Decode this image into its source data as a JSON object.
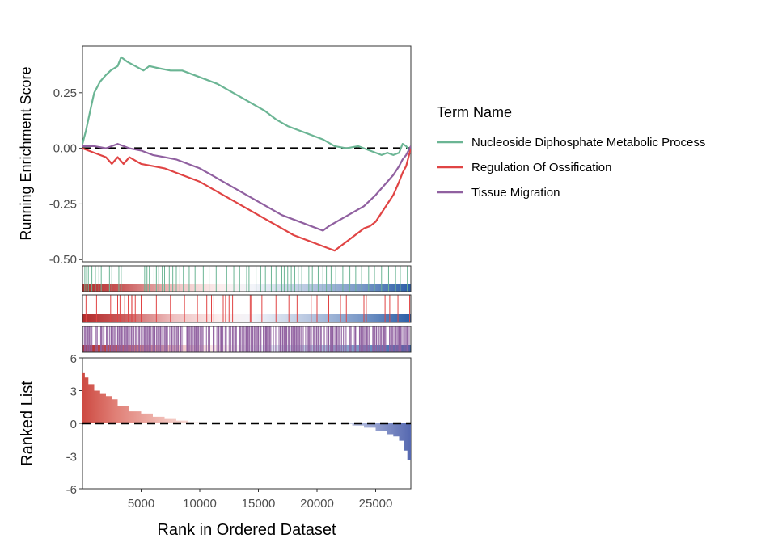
{
  "chart_data": {
    "type": "line",
    "top_panel": {
      "ylabel": "Running Enrichment Score",
      "ylim": [
        -0.51,
        0.46
      ],
      "yticks": [
        0.25,
        0.0,
        -0.25,
        -0.5
      ],
      "ytick_labels": [
        "0.25",
        "0.00",
        "-0.25",
        "-0.50"
      ],
      "hline": 0,
      "series": [
        {
          "name": "Nucleoside Diphosphate Metabolic Process",
          "color": "#6bb594",
          "x": [
            0,
            300,
            700,
            1000,
            1500,
            2000,
            2400,
            3000,
            3300,
            3800,
            4500,
            5200,
            5700,
            6500,
            7500,
            8500,
            9500,
            10500,
            11500,
            12500,
            13500,
            14500,
            15500,
            16500,
            17500,
            18500,
            19500,
            20500,
            21500,
            22500,
            23500,
            24500,
            25500,
            26000,
            26500,
            27000,
            27300,
            27600,
            28000
          ],
          "values": [
            0.02,
            0.08,
            0.18,
            0.25,
            0.3,
            0.33,
            0.35,
            0.37,
            0.41,
            0.39,
            0.37,
            0.35,
            0.37,
            0.36,
            0.35,
            0.35,
            0.33,
            0.31,
            0.29,
            0.26,
            0.23,
            0.2,
            0.17,
            0.13,
            0.1,
            0.08,
            0.06,
            0.04,
            0.01,
            0.0,
            0.01,
            -0.01,
            -0.03,
            -0.02,
            -0.03,
            -0.02,
            0.02,
            0.01,
            -0.02
          ]
        },
        {
          "name": "Regulation Of Ossification",
          "color": "#e04444",
          "x": [
            0,
            500,
            1000,
            1500,
            2000,
            2500,
            3000,
            3500,
            4000,
            5000,
            6000,
            7000,
            8000,
            9000,
            10000,
            11000,
            12000,
            13000,
            14000,
            15000,
            16000,
            17000,
            18000,
            19000,
            20000,
            21000,
            21500,
            22000,
            22500,
            23000,
            23500,
            24000,
            24500,
            25000,
            25500,
            26000,
            26500,
            27000,
            27300,
            27600,
            28000
          ],
          "values": [
            0.0,
            -0.01,
            -0.02,
            -0.03,
            -0.04,
            -0.07,
            -0.04,
            -0.07,
            -0.04,
            -0.07,
            -0.08,
            -0.09,
            -0.11,
            -0.13,
            -0.15,
            -0.18,
            -0.21,
            -0.24,
            -0.27,
            -0.3,
            -0.33,
            -0.36,
            -0.39,
            -0.41,
            -0.43,
            -0.45,
            -0.46,
            -0.44,
            -0.42,
            -0.4,
            -0.38,
            -0.36,
            -0.35,
            -0.33,
            -0.29,
            -0.25,
            -0.21,
            -0.15,
            -0.11,
            -0.08,
            0.0
          ]
        },
        {
          "name": "Tissue Migration",
          "color": "#9060a0",
          "x": [
            0,
            1000,
            2000,
            3000,
            3500,
            4000,
            5000,
            6000,
            7000,
            8000,
            9000,
            10000,
            11000,
            12000,
            13000,
            14000,
            15000,
            16000,
            17000,
            18000,
            19000,
            20000,
            20500,
            21000,
            22000,
            23000,
            24000,
            25000,
            26000,
            26500,
            27000,
            27300,
            27600,
            28000
          ],
          "values": [
            0.01,
            0.01,
            0.0,
            0.02,
            0.01,
            0.0,
            -0.01,
            -0.03,
            -0.04,
            -0.05,
            -0.07,
            -0.09,
            -0.12,
            -0.15,
            -0.18,
            -0.21,
            -0.24,
            -0.27,
            -0.3,
            -0.32,
            -0.34,
            -0.36,
            -0.37,
            -0.35,
            -0.32,
            -0.29,
            -0.26,
            -0.21,
            -0.15,
            -0.12,
            -0.08,
            -0.05,
            -0.03,
            0.01
          ]
        }
      ]
    },
    "hit_panels": [
      {
        "series": "Nucleoside Diphosphate Metabolic Process",
        "color": "#6bb594",
        "hits": [
          200,
          350,
          500,
          800,
          1100,
          1400,
          1600,
          2300,
          2500,
          3100,
          3300,
          5300,
          5500,
          5700,
          6100,
          6300,
          6500,
          6800,
          7000,
          7400,
          7700,
          8000,
          8300,
          8600,
          9100,
          9600,
          10300,
          10800,
          11400,
          12300,
          12900,
          13400,
          14000,
          14200,
          14800,
          15200,
          15600,
          16100,
          16500,
          17000,
          17200,
          17500,
          17800,
          18100,
          18400,
          18700,
          19300,
          19600,
          20100,
          20500,
          20800,
          21200,
          21600,
          22200,
          22800,
          23300,
          23800,
          24400,
          24900,
          25500,
          26100,
          26700,
          27100,
          27700
        ]
      },
      {
        "series": "Regulation Of Ossification",
        "color": "#e04444",
        "hits": [
          300,
          1200,
          2400,
          3000,
          3200,
          3600,
          3900,
          4200,
          4300,
          4500,
          5000,
          6300,
          7500,
          8700,
          9800,
          10600,
          11000,
          11200,
          12000,
          12200,
          12500,
          12800,
          14300,
          14400,
          15300,
          16500,
          17600,
          18300,
          19500,
          20000,
          21000,
          22000,
          22500,
          24000,
          24200,
          25800,
          26200,
          26900,
          27900
        ]
      },
      {
        "series": "Tissue Migration",
        "color": "#9060a0",
        "density": 0.82
      }
    ],
    "ranked_panel": {
      "ylabel": "Ranked List",
      "ylim": [
        -6,
        6
      ],
      "yticks": [
        6,
        3,
        0,
        -3,
        -6
      ],
      "ytick_labels": [
        "6",
        "3",
        "0",
        "-3",
        "-6"
      ],
      "hline": 0,
      "x": [
        0,
        200,
        500,
        1000,
        1500,
        2000,
        2500,
        3000,
        4000,
        5000,
        6000,
        7000,
        8000,
        9000,
        10000,
        12000,
        14000,
        16000,
        18000,
        20000,
        22000,
        23000,
        24000,
        25000,
        26000,
        26500,
        27000,
        27400,
        27700,
        28000
      ],
      "values": [
        4.6,
        4.2,
        3.6,
        3.0,
        2.7,
        2.5,
        2.2,
        1.6,
        1.1,
        0.9,
        0.6,
        0.4,
        0.25,
        0.1,
        0.05,
        0.0,
        0.0,
        0.0,
        0.0,
        0.0,
        -0.05,
        -0.2,
        -0.4,
        -0.7,
        -1.0,
        -1.2,
        -1.6,
        -2.5,
        -3.4,
        -4.6
      ]
    },
    "xlabel": "Rank in Ordered Dataset",
    "xlim": [
      0,
      28000
    ],
    "xticks": [
      5000,
      10000,
      15000,
      20000,
      25000
    ],
    "xtick_labels": [
      "5000",
      "10000",
      "15000",
      "20000",
      "25000"
    ],
    "legend": {
      "title": "Term Name",
      "position": "right",
      "entries": [
        "Nucleoside Diphosphate Metabolic Process",
        "Regulation Of Ossification",
        "Tissue Migration"
      ]
    },
    "colors": {
      "heat_high": "#b22222",
      "heat_mid": "#ffffff",
      "heat_low": "#2b5ea7",
      "frame": "#333333"
    }
  }
}
